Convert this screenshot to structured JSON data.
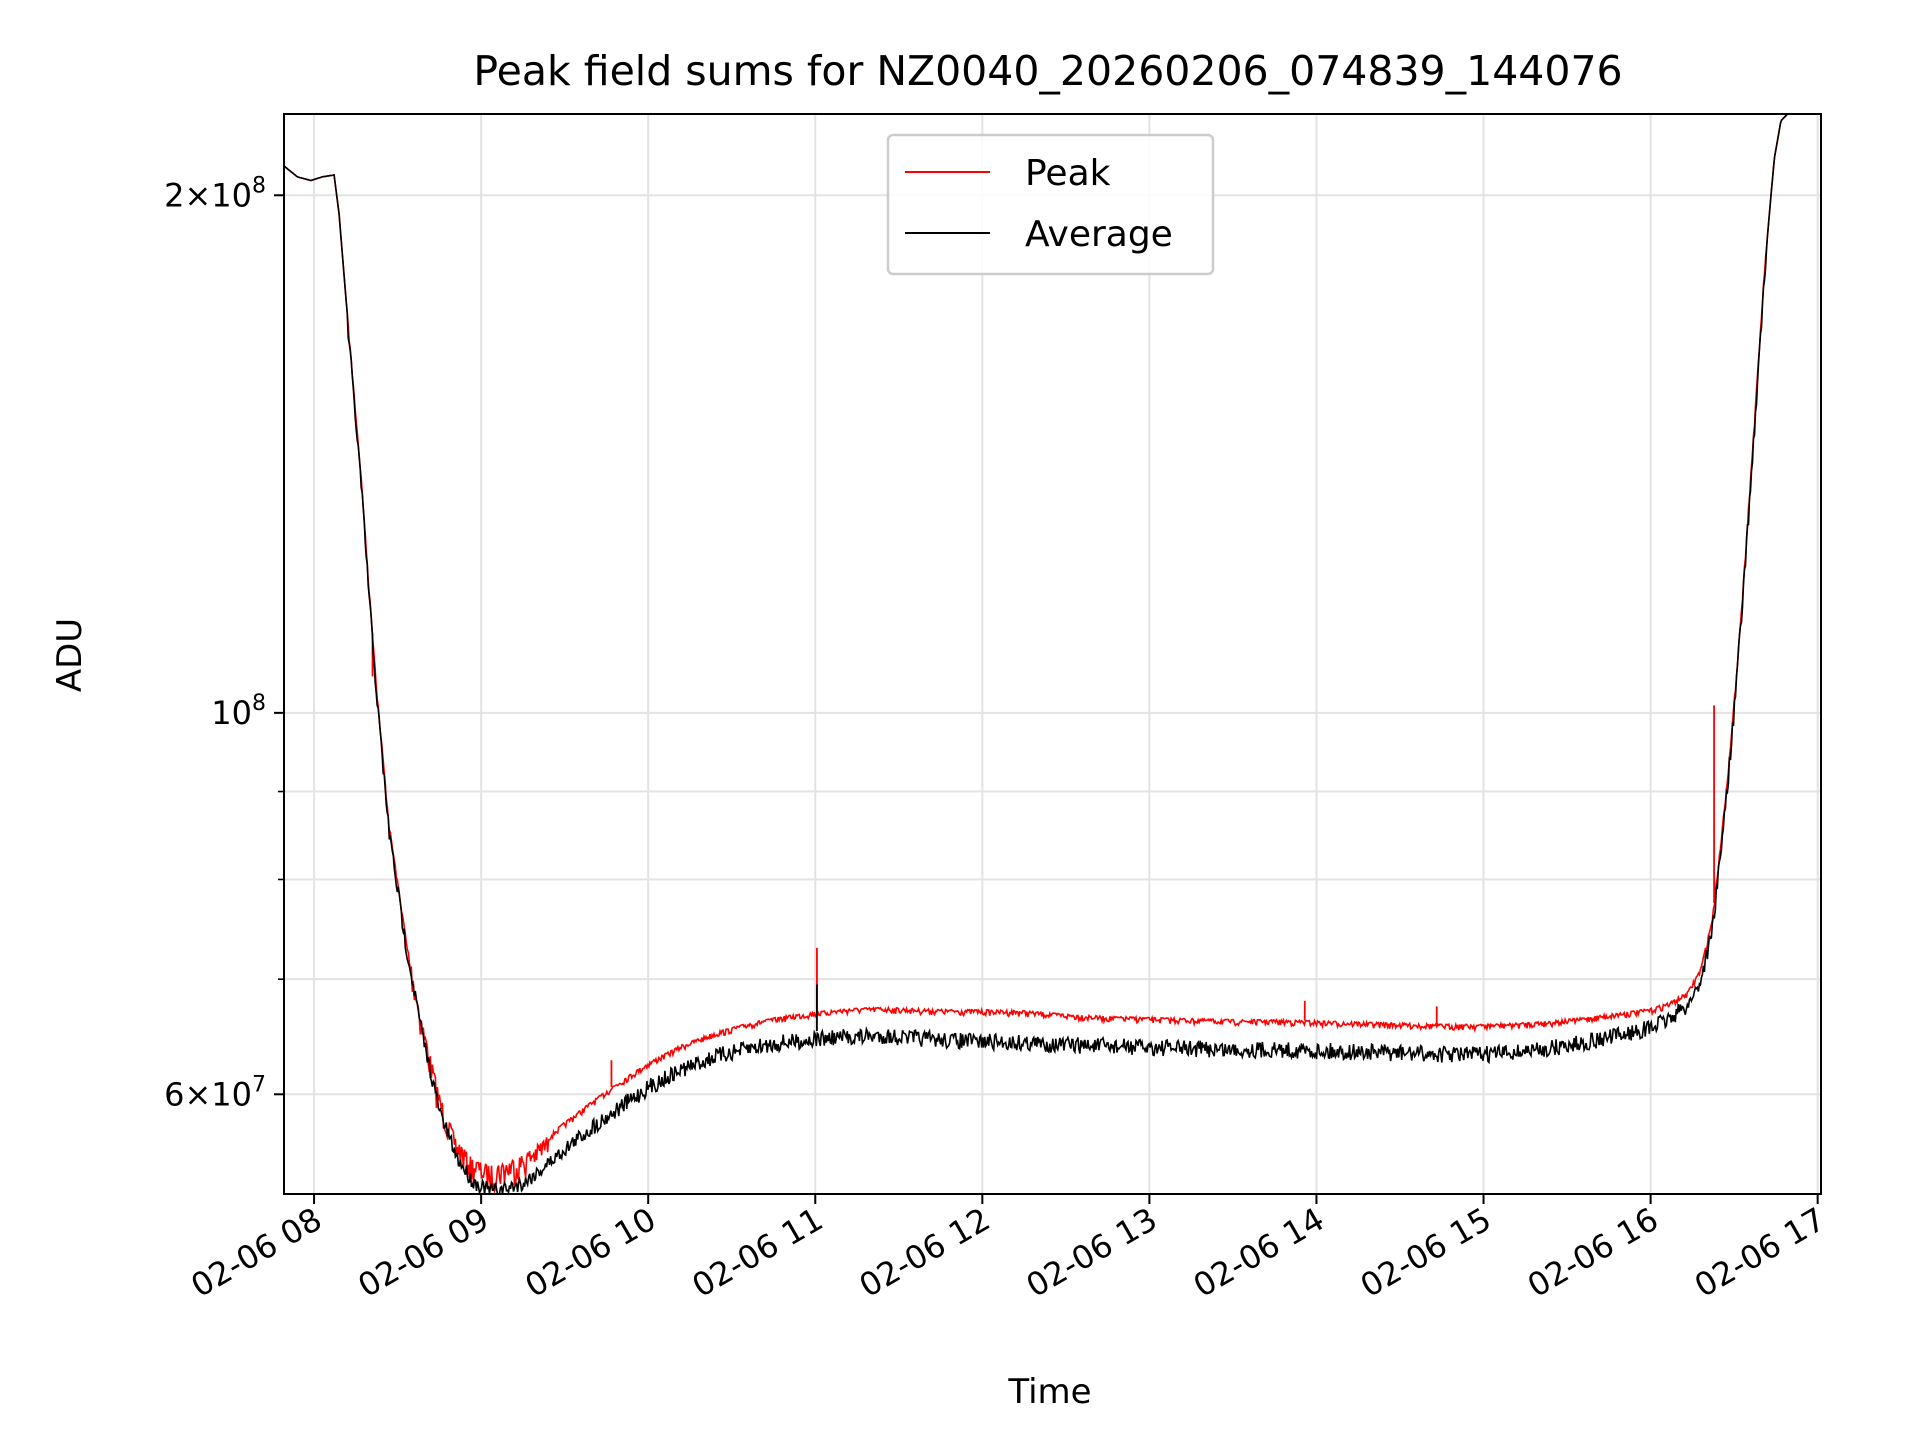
{
  "chart_data": {
    "type": "line",
    "title": "Peak field sums for NZ0040_20260206_074839_144076",
    "xlabel": "Time",
    "ylabel": "ADU",
    "yscale": "log",
    "grid": true,
    "legend_position": "top-center",
    "xlim_hours": [
      7.82,
      17.02
    ],
    "ylim": [
      52500000,
      223000000
    ],
    "x_ticks": [
      {
        "hour": 8,
        "label": "02-06 08"
      },
      {
        "hour": 9,
        "label": "02-06 09"
      },
      {
        "hour": 10,
        "label": "02-06 10"
      },
      {
        "hour": 11,
        "label": "02-06 11"
      },
      {
        "hour": 12,
        "label": "02-06 12"
      },
      {
        "hour": 13,
        "label": "02-06 13"
      },
      {
        "hour": 14,
        "label": "02-06 14"
      },
      {
        "hour": 15,
        "label": "02-06 15"
      },
      {
        "hour": 16,
        "label": "02-06 16"
      },
      {
        "hour": 17,
        "label": "02-06 17"
      }
    ],
    "y_major_ticks": [
      {
        "value": 200000000,
        "mantissa": "2",
        "exp": "8",
        "times": true
      },
      {
        "value": 100000000,
        "mantissa": "10",
        "exp": "8",
        "times": false
      },
      {
        "value": 60000000,
        "mantissa": "6",
        "exp": "7",
        "times": true
      }
    ],
    "y_minor_ticks": [
      70000000,
      80000000,
      90000000
    ],
    "series": [
      {
        "name": "Peak",
        "color": "#ff0000",
        "x_hours": [
          7.82,
          7.9,
          7.98,
          8.05,
          8.12,
          8.15,
          8.2,
          8.28,
          8.33,
          8.38,
          8.45,
          8.55,
          8.65,
          8.75,
          8.85,
          8.95,
          9.05,
          9.15,
          9.25,
          9.35,
          9.5,
          9.65,
          9.8,
          10.0,
          10.2,
          10.4,
          10.6,
          10.8,
          11.0,
          11.2,
          11.4,
          11.6,
          11.8,
          12.0,
          12.25,
          12.5,
          12.75,
          13.0,
          13.25,
          13.5,
          13.75,
          14.0,
          14.25,
          14.5,
          14.75,
          15.0,
          15.2,
          15.4,
          15.6,
          15.8,
          16.0,
          16.12,
          16.22,
          16.3,
          16.37,
          16.42,
          16.48,
          16.55,
          16.62,
          16.68,
          16.74,
          16.78,
          16.82
        ],
        "values": [
          208000000,
          205000000,
          204000000,
          205000000,
          205500000,
          195000000,
          170000000,
          138000000,
          118000000,
          102000000,
          86000000,
          74000000,
          66000000,
          60000000,
          56500000,
          55000000,
          54500000,
          54800000,
          55300000,
          56200000,
          57800000,
          59300000,
          60800000,
          62600000,
          64100000,
          65200000,
          66000000,
          66600000,
          67000000,
          67300000,
          67400000,
          67300000,
          67200000,
          67200000,
          67100000,
          66800000,
          66600000,
          66500000,
          66400000,
          66300000,
          66300000,
          66200000,
          66100000,
          66000000,
          65900000,
          65900000,
          66000000,
          66200000,
          66500000,
          66900000,
          67300000,
          67900000,
          68800000,
          71000000,
          76000000,
          84000000,
          96000000,
          117000000,
          147000000,
          180000000,
          210000000,
          221000000,
          223000000
        ],
        "spikes": [
          {
            "hour": 8.35,
            "value": 105000000
          },
          {
            "hour": 9.78,
            "value": 62800000
          },
          {
            "hour": 11.01,
            "value": 73000000
          },
          {
            "hour": 13.93,
            "value": 68000000
          },
          {
            "hour": 14.72,
            "value": 67500000
          },
          {
            "hour": 16.38,
            "value": 101000000
          }
        ]
      },
      {
        "name": "Average",
        "color": "#000000",
        "x_hours": [
          7.82,
          7.9,
          7.98,
          8.05,
          8.12,
          8.15,
          8.2,
          8.28,
          8.33,
          8.38,
          8.45,
          8.55,
          8.65,
          8.75,
          8.85,
          8.95,
          9.05,
          9.15,
          9.25,
          9.35,
          9.5,
          9.65,
          9.8,
          10.0,
          10.2,
          10.4,
          10.6,
          10.8,
          11.0,
          11.2,
          11.4,
          11.6,
          11.8,
          12.0,
          12.25,
          12.5,
          12.75,
          13.0,
          13.25,
          13.5,
          13.75,
          14.0,
          14.25,
          14.5,
          14.75,
          15.0,
          15.2,
          15.4,
          15.6,
          15.8,
          16.0,
          16.12,
          16.22,
          16.3,
          16.37,
          16.42,
          16.48,
          16.55,
          16.62,
          16.68,
          16.74,
          16.78,
          16.82
        ],
        "values": [
          208000000,
          205000000,
          204000000,
          205000000,
          205500000,
          195000000,
          170000000,
          138000000,
          118000000,
          102000000,
          86000000,
          74000000,
          65500000,
          59300000,
          55800000,
          53900000,
          53300000,
          53400000,
          53800000,
          54700000,
          56300000,
          57900000,
          59300000,
          61200000,
          62700000,
          63800000,
          64500000,
          65000000,
          65300000,
          65500000,
          65600000,
          65400000,
          65200000,
          65100000,
          65000000,
          64800000,
          64700000,
          64600000,
          64500000,
          64400000,
          64400000,
          64300000,
          64200000,
          64100000,
          64000000,
          64000000,
          64200000,
          64500000,
          65000000,
          65600000,
          66300000,
          67200000,
          68300000,
          70600000,
          75700000,
          83800000,
          96000000,
          117000000,
          147000000,
          180000000,
          210000000,
          221000000,
          223000000
        ],
        "spikes": [
          {
            "hour": 11.01,
            "value": 69500000
          }
        ]
      }
    ]
  }
}
